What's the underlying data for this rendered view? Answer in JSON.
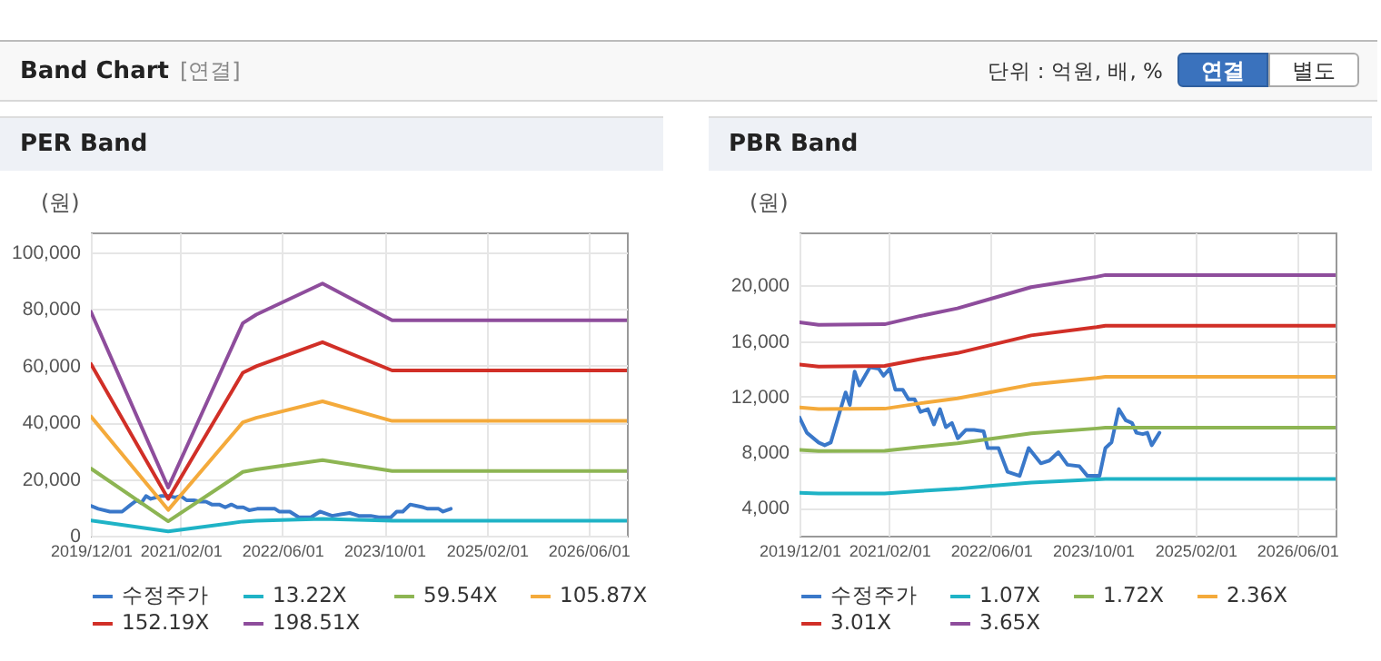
{
  "chart_data": [
    {
      "type": "other",
      "title": "Band Chart",
      "subtitle": "[연결]",
      "annotations": [
        "단위 : 억원, 배, %",
        "연결",
        "별도"
      ]
    },
    {
      "type": "line",
      "title": "PER Band",
      "ylabel": "(원)",
      "xlim": [
        "2019-12-01",
        "2026-12-01"
      ],
      "ylim": [
        0,
        107000
      ],
      "xticks": [
        {
          "value": "2019-12-01",
          "label": "2019/12/01"
        },
        {
          "value": "2021-02-01",
          "label": "2021/02/01"
        },
        {
          "value": "2022-06-01",
          "label": "2022/06/01"
        },
        {
          "value": "2023-10-01",
          "label": "2023/10/01"
        },
        {
          "value": "2025-02-01",
          "label": "2025/02/01"
        },
        {
          "value": "2026-06-01",
          "label": "2026/06/01"
        }
      ],
      "yticks": [
        0,
        {
          "value": 20000,
          "label": "20,000"
        },
        {
          "value": 40000,
          "label": "40,000"
        },
        {
          "value": 60000,
          "label": "60,000"
        },
        {
          "value": 80000,
          "label": "80,000"
        },
        {
          "value": 100000,
          "label": "100,000"
        }
      ],
      "grid": true,
      "legend": "bottom",
      "series": [
        {
          "name": "수정주가",
          "color": "#3a78c9",
          "x": [
            "2019-12-01",
            "2020-01-05",
            "2020-03-01",
            "2020-03-30",
            "2020-04-28",
            "2020-06-10",
            "2020-07-08",
            "2020-07-28",
            "2020-08-20",
            "2020-09-12",
            "2020-11-01",
            "2020-12-13",
            "2021-01-05",
            "2021-02-03",
            "2021-03-02",
            "2021-04-06",
            "2021-05-04",
            "2021-06-02",
            "2021-06-30",
            "2021-08-04",
            "2021-09-02",
            "2021-10-01",
            "2021-10-29",
            "2021-11-27",
            "2021-12-25",
            "2022-02-01",
            "2022-03-13",
            "2022-04-27",
            "2022-05-17",
            "2022-07-07",
            "2022-08-19",
            "2022-10-16",
            "2022-11-28",
            "2023-01-25",
            "2023-03-07",
            "2023-04-19",
            "2023-06-01",
            "2023-07-28",
            "2023-09-04",
            "2023-11-01",
            "2023-11-29",
            "2023-12-28",
            "2024-02-01",
            "2024-03-05",
            "2024-04-04",
            "2024-04-25",
            "2024-05-25",
            "2024-06-16",
            "2024-07-07",
            "2024-08-13"
          ],
          "values": [
            10500,
            9500,
            8500,
            8500,
            8500,
            11000,
            12500,
            11500,
            14000,
            13000,
            14000,
            14000,
            13500,
            14000,
            12500,
            12500,
            12000,
            12000,
            11000,
            11000,
            10000,
            11000,
            10000,
            10000,
            9000,
            9500,
            9500,
            9500,
            8500,
            8500,
            6500,
            6500,
            8500,
            7000,
            7500,
            8000,
            7000,
            7000,
            6500,
            6500,
            8500,
            8500,
            11000,
            10500,
            10000,
            9500,
            9500,
            9500,
            8500,
            9500
          ]
        },
        {
          "name": "13.22X",
          "color": "#1fb3c6",
          "x": [
            "2019-12-01",
            "2020-12-04",
            "2021-11-25",
            "2022-01-28",
            "2022-12-10",
            "2023-11-07",
            "2026-12-01"
          ],
          "values": [
            5400,
            1500,
            5000,
            5300,
            5900,
            5300,
            5300
          ]
        },
        {
          "name": "59.54X",
          "color": "#8db553",
          "x": [
            "2019-12-01",
            "2020-12-04",
            "2021-11-25",
            "2022-01-28",
            "2022-12-10",
            "2023-11-07",
            "2026-12-01"
          ],
          "values": [
            23700,
            5100,
            22500,
            23400,
            26700,
            22800,
            22800
          ]
        },
        {
          "name": "105.87X",
          "color": "#f4aa3b",
          "x": [
            "2019-12-01",
            "2020-12-04",
            "2021-11-25",
            "2022-01-28",
            "2022-12-10",
            "2023-11-07",
            "2026-12-01"
          ],
          "values": [
            42100,
            9100,
            40000,
            41600,
            47400,
            40500,
            40500
          ]
        },
        {
          "name": "152.19X",
          "color": "#d12f27",
          "x": [
            "2019-12-01",
            "2020-12-04",
            "2021-11-25",
            "2022-01-28",
            "2022-12-10",
            "2023-11-07",
            "2026-12-01"
          ],
          "values": [
            60600,
            13000,
            57500,
            59800,
            68300,
            58300,
            58300
          ]
        },
        {
          "name": "198.51X",
          "color": "#8e4d9c",
          "x": [
            "2019-12-01",
            "2020-12-04",
            "2021-11-25",
            "2022-01-28",
            "2022-12-10",
            "2023-11-07",
            "2026-12-01"
          ],
          "values": [
            79000,
            17000,
            75000,
            78000,
            89000,
            76000,
            76000
          ]
        }
      ]
    },
    {
      "type": "line",
      "title": "PBR Band",
      "ylabel": "(원)",
      "xlim": [
        "2019-12-01",
        "2026-12-01"
      ],
      "ylim": [
        2000,
        23800
      ],
      "xticks": [
        {
          "value": "2019-12-01",
          "label": "2019/12/01"
        },
        {
          "value": "2021-02-01",
          "label": "2021/02/01"
        },
        {
          "value": "2022-06-01",
          "label": "2022/06/01"
        },
        {
          "value": "2023-10-01",
          "label": "2023/10/01"
        },
        {
          "value": "2025-02-01",
          "label": "2025/02/01"
        },
        {
          "value": "2026-06-01",
          "label": "2026/06/01"
        }
      ],
      "yticks": [
        {
          "value": 4000,
          "label": "4,000"
        },
        {
          "value": 8000,
          "label": "8,000"
        },
        {
          "value": 12000,
          "label": "12,000"
        },
        {
          "value": 16000,
          "label": "16,000"
        },
        {
          "value": 20000,
          "label": "20,000"
        }
      ],
      "grid": true,
      "legend": "bottom",
      "series": [
        {
          "name": "수정주가",
          "color": "#3a78c9",
          "x": [
            "2019-12-01",
            "2020-01-05",
            "2020-03-01",
            "2020-03-30",
            "2020-04-28",
            "2020-06-10",
            "2020-07-08",
            "2020-07-28",
            "2020-08-20",
            "2020-09-12",
            "2020-11-01",
            "2020-12-13",
            "2021-01-05",
            "2021-02-03",
            "2021-03-02",
            "2021-04-06",
            "2021-05-04",
            "2021-06-02",
            "2021-06-30",
            "2021-08-04",
            "2021-09-02",
            "2021-10-01",
            "2021-10-29",
            "2021-11-27",
            "2021-12-25",
            "2022-02-01",
            "2022-03-13",
            "2022-04-27",
            "2022-05-17",
            "2022-07-07",
            "2022-08-19",
            "2022-10-16",
            "2022-11-28",
            "2023-01-25",
            "2023-03-07",
            "2023-04-19",
            "2023-06-01",
            "2023-07-28",
            "2023-09-04",
            "2023-11-01",
            "2023-11-29",
            "2023-12-28",
            "2024-02-01",
            "2024-03-05",
            "2024-04-04",
            "2024-04-25",
            "2024-05-25",
            "2024-06-16",
            "2024-07-07",
            "2024-08-13"
          ],
          "values": [
            10500,
            9400,
            8700,
            8500,
            8700,
            10900,
            12300,
            11400,
            13800,
            12800,
            14100,
            14000,
            13500,
            14000,
            12500,
            12500,
            11800,
            11800,
            10900,
            11100,
            10000,
            11100,
            9800,
            10100,
            9000,
            9600,
            9600,
            9500,
            8300,
            8300,
            6600,
            6300,
            8300,
            7200,
            7400,
            8000,
            7100,
            7000,
            6300,
            6300,
            8300,
            8700,
            11100,
            10300,
            10100,
            9400,
            9300,
            9400,
            8500,
            9400
          ]
        },
        {
          "name": "1.07X",
          "color": "#1fb3c6",
          "x": [
            "2019-12-01",
            "2020-03-01",
            "2021-01-10",
            "2021-06-30",
            "2021-12-23",
            "2022-05-25",
            "2022-12-10",
            "2023-10-18",
            "2023-11-29",
            "2026-12-01"
          ],
          "values": [
            5080,
            5030,
            5040,
            5220,
            5370,
            5570,
            5820,
            6040,
            6080,
            6080
          ]
        },
        {
          "name": "1.72X",
          "color": "#8db553",
          "x": [
            "2019-12-01",
            "2020-03-01",
            "2021-01-10",
            "2021-06-30",
            "2021-12-23",
            "2022-05-25",
            "2022-12-10",
            "2023-10-18",
            "2023-11-29",
            "2026-12-01"
          ],
          "values": [
            8170,
            8080,
            8100,
            8380,
            8640,
            8950,
            9360,
            9710,
            9770,
            9770
          ]
        },
        {
          "name": "2.36X",
          "color": "#f4aa3b",
          "x": [
            "2019-12-01",
            "2020-03-01",
            "2021-01-10",
            "2021-06-30",
            "2021-12-23",
            "2022-05-25",
            "2022-12-10",
            "2023-10-18",
            "2023-11-29",
            "2026-12-01"
          ],
          "values": [
            11220,
            11100,
            11130,
            11520,
            11870,
            12300,
            12860,
            13340,
            13420,
            13420
          ]
        },
        {
          "name": "3.01X",
          "color": "#d12f27",
          "x": [
            "2019-12-01",
            "2020-03-01",
            "2021-01-10",
            "2021-06-30",
            "2021-12-23",
            "2022-05-25",
            "2022-12-10",
            "2023-10-18",
            "2023-11-29",
            "2026-12-01"
          ],
          "values": [
            14300,
            14150,
            14200,
            14700,
            15130,
            15680,
            16400,
            17000,
            17100,
            17100
          ]
        },
        {
          "name": "3.65X",
          "color": "#8e4d9c",
          "x": [
            "2019-12-01",
            "2020-03-01",
            "2021-01-10",
            "2021-06-30",
            "2021-12-23",
            "2022-05-25",
            "2022-12-10",
            "2023-10-18",
            "2023-11-29",
            "2026-12-01"
          ],
          "values": [
            17340,
            17160,
            17200,
            17800,
            18340,
            19000,
            19870,
            20610,
            20740,
            20740
          ]
        }
      ]
    }
  ]
}
